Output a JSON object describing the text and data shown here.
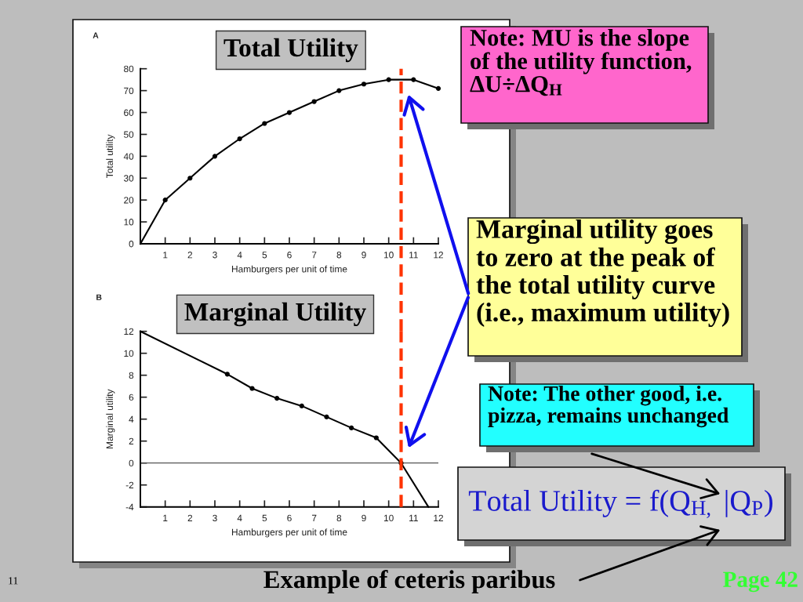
{
  "chart_data": [
    {
      "type": "line",
      "title": "Total Utility",
      "annotations": [
        "A"
      ],
      "xlabel": "Hamburgers per unit of time",
      "ylabel": "Total utility",
      "xlim": [
        0,
        12
      ],
      "ylim": [
        0,
        80
      ],
      "xticks": [
        1,
        2,
        3,
        4,
        5,
        6,
        7,
        8,
        9,
        10,
        11,
        12
      ],
      "yticks": [
        0,
        10,
        20,
        30,
        40,
        50,
        60,
        70,
        80
      ],
      "series": [
        {
          "type": "line",
          "color": "#000000",
          "marker": "none",
          "x": [
            0,
            1,
            2,
            3,
            4,
            5,
            6,
            7,
            8,
            9,
            10,
            11,
            12
          ],
          "values": [
            0,
            20,
            30,
            40,
            48,
            55,
            60,
            65,
            70,
            73,
            75,
            75,
            71
          ]
        },
        {
          "type": "scatter",
          "color": "#000000",
          "marker": "circle",
          "x": [
            1,
            2,
            3,
            4,
            5,
            6,
            7,
            8,
            9,
            10,
            11,
            12
          ],
          "values": [
            20,
            30,
            40,
            48,
            55,
            60,
            65,
            70,
            73,
            75,
            75,
            71
          ]
        }
      ],
      "ref_lines": [
        {
          "axis": "x",
          "value": 10.5,
          "color": "#ff3300",
          "line_style": "dashed"
        }
      ]
    },
    {
      "type": "line",
      "title": "Marginal Utility",
      "annotations": [
        "B"
      ],
      "xlabel": "Hamburgers per unit of time",
      "ylabel": "Marginal utility",
      "xlim": [
        0,
        12
      ],
      "ylim": [
        -4,
        12
      ],
      "xticks": [
        1,
        2,
        3,
        4,
        5,
        6,
        7,
        8,
        9,
        10,
        11,
        12
      ],
      "yticks": [
        -4,
        -2,
        0,
        2,
        4,
        6,
        8,
        10,
        12
      ],
      "series": [
        {
          "type": "line",
          "color": "#000000",
          "marker": "none",
          "x": [
            0,
            3.5,
            4.5,
            5.5,
            6.5,
            7.5,
            8.5,
            9.5,
            10.5,
            11.6
          ],
          "values": [
            12,
            8.1,
            6.8,
            5.9,
            5.2,
            4.2,
            3.2,
            2.3,
            0,
            -4
          ]
        },
        {
          "type": "scatter",
          "color": "#000000",
          "marker": "circle",
          "x": [
            3.5,
            4.5,
            5.5,
            6.5,
            7.5,
            8.5,
            9.5,
            10.5
          ],
          "values": [
            8.1,
            6.8,
            5.9,
            5.2,
            4.2,
            3.2,
            2.3,
            0
          ]
        }
      ],
      "ref_lines": [
        {
          "axis": "y",
          "value": 0,
          "color": "#555555",
          "line_style": "solid"
        },
        {
          "axis": "x",
          "value": 10.5,
          "color": "#ff3300",
          "line_style": "dashed"
        }
      ]
    },
    {
      "type": "other",
      "annotations": [
        "Note: MU is the slope\nof the utility function,\nΔU÷ΔQ$_{H}$",
        "Marginal utility goes\nto zero at the peak of\nthe total utility curve\n(i.e., maximum utility)",
        "Note: The other good, i.e.\npizza, remains unchanged",
        "Total Utility = f(Q$_{H,}$ |Q$_{P}$)",
        "Example of ceteris paribus",
        "11",
        "Page 42"
      ]
    }
  ]
}
